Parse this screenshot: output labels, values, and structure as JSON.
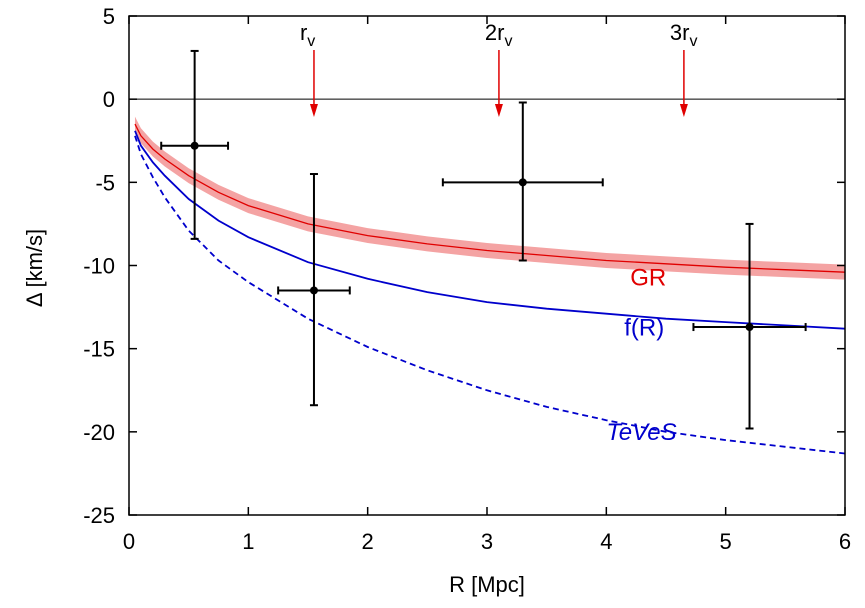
{
  "chart_data": {
    "type": "line",
    "title": "",
    "xlabel": "R [Mpc]",
    "ylabel": "Δ [km/s]",
    "xlim": [
      0,
      6
    ],
    "ylim": [
      -25,
      5
    ],
    "xticks": [
      0,
      1,
      2,
      3,
      4,
      5,
      6
    ],
    "yticks": [
      5,
      0,
      -5,
      -10,
      -15,
      -20,
      -25
    ],
    "grid": false,
    "zero_line": true,
    "series": [
      {
        "name": "GR",
        "label": "GR",
        "color": "#e00000",
        "band_color": "#f4a3a3",
        "style": "solid",
        "x": [
          0.05,
          0.1,
          0.2,
          0.3,
          0.5,
          0.75,
          1.0,
          1.5,
          2.0,
          2.5,
          3.0,
          3.5,
          4.0,
          4.5,
          5.0,
          5.5,
          6.0
        ],
        "y": [
          -1.5,
          -2.2,
          -3.0,
          -3.6,
          -4.6,
          -5.6,
          -6.4,
          -7.5,
          -8.2,
          -8.7,
          -9.1,
          -9.4,
          -9.7,
          -9.9,
          -10.1,
          -10.25,
          -10.4
        ],
        "band_halfwidth": 0.45
      },
      {
        "name": "f(R)",
        "label": "f(R)",
        "color": "#0000cc",
        "style": "solid",
        "x": [
          0.05,
          0.1,
          0.2,
          0.3,
          0.5,
          0.75,
          1.0,
          1.5,
          2.0,
          2.5,
          3.0,
          3.5,
          4.0,
          4.5,
          5.0,
          5.5,
          6.0
        ],
        "y": [
          -1.9,
          -2.8,
          -3.8,
          -4.6,
          -6.0,
          -7.3,
          -8.3,
          -9.8,
          -10.8,
          -11.6,
          -12.2,
          -12.6,
          -12.9,
          -13.2,
          -13.4,
          -13.6,
          -13.8
        ]
      },
      {
        "name": "TeVeS",
        "label": "TeVeS",
        "color": "#0000cc",
        "style": "dashed",
        "x": [
          0.05,
          0.1,
          0.2,
          0.3,
          0.5,
          0.75,
          1.0,
          1.5,
          2.0,
          2.5,
          3.0,
          3.5,
          4.0,
          4.5,
          5.0,
          5.5,
          6.0
        ],
        "y": [
          -2.2,
          -3.3,
          -4.7,
          -5.9,
          -7.9,
          -9.7,
          -11.0,
          -13.2,
          -14.9,
          -16.3,
          -17.5,
          -18.5,
          -19.3,
          -20.0,
          -20.5,
          -20.9,
          -21.3
        ]
      }
    ],
    "points": [
      {
        "x": 0.55,
        "y": -2.8,
        "xerr": 0.28,
        "yerr_low": 5.6,
        "yerr_high": 5.7
      },
      {
        "x": 1.55,
        "y": -11.5,
        "xerr": 0.3,
        "yerr_low": 6.9,
        "yerr_high": 7.0
      },
      {
        "x": 3.3,
        "y": -5.0,
        "xerr": 0.67,
        "yerr_low": 4.7,
        "yerr_high": 4.8
      },
      {
        "x": 5.2,
        "y": -13.7,
        "xerr": 0.47,
        "yerr_low": 6.1,
        "yerr_high": 6.2
      }
    ],
    "markers": [
      {
        "base": "r",
        "sub": "v",
        "x": 1.55
      },
      {
        "base": "2r",
        "sub": "v",
        "x": 3.1
      },
      {
        "base": "3r",
        "sub": "v",
        "x": 4.65
      }
    ]
  }
}
